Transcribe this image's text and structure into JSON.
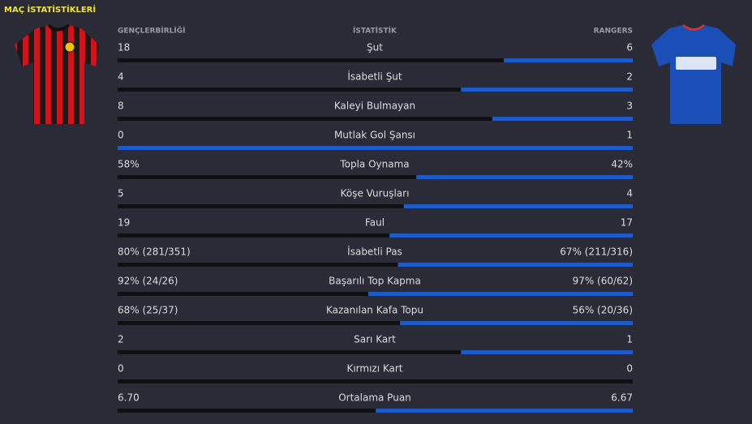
{
  "title": "MAÇ İSTATİSTİKLERİ",
  "header": {
    "home": "GENÇLERBİRLİĞİ",
    "stat": "İSTATİSTİK",
    "away": "RANGERS"
  },
  "rows": [
    {
      "home": 18,
      "label": "Şut",
      "away": 6
    },
    {
      "home": 4,
      "label": "İsabetli Şut",
      "away": 2
    },
    {
      "home": 8,
      "label": "Kaleyi Bulmayan",
      "away": 3
    },
    {
      "home": 0,
      "label": "Mutlak Gol Şansı",
      "away": 1
    },
    {
      "home": {
        "value": 58,
        "label": "58%"
      },
      "label": "Topla Oynama",
      "away": {
        "value": 42,
        "label": "42%"
      }
    },
    {
      "home": 5,
      "label": "Köşe Vuruşları",
      "away": 4
    },
    {
      "home": 19,
      "label": "Faul",
      "away": 17
    },
    {
      "home": {
        "value": 80,
        "label": "80% (281/351)"
      },
      "label": "İsabetli Pas",
      "away": {
        "value": 67,
        "label": "67% (211/316)"
      }
    },
    {
      "home": {
        "value": 92,
        "label": "92% (24/26)"
      },
      "label": "Başarılı Top Kapma",
      "away": {
        "value": 97,
        "label": "97% (60/62)"
      }
    },
    {
      "home": {
        "value": 68,
        "label": "68% (25/37)"
      },
      "label": "Kazanılan Kafa Topu",
      "away": {
        "value": 56,
        "label": "56% (20/36)"
      }
    },
    {
      "home": 2,
      "label": "Sarı Kart",
      "away": 1
    },
    {
      "home": 0,
      "label": "Kırmızı Kart",
      "away": 0
    },
    {
      "home": {
        "value": 6.7,
        "label": "6.70"
      },
      "label": "Ortalama Puan",
      "away": {
        "value": 6.67,
        "label": "6.67"
      }
    }
  ]
}
